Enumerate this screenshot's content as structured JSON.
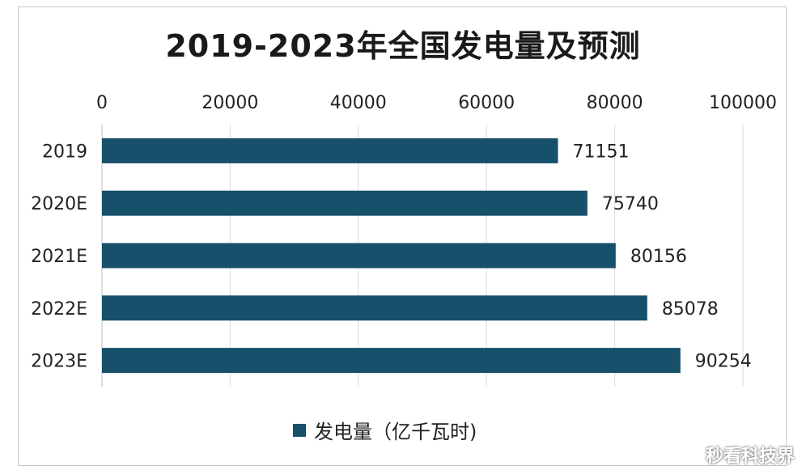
{
  "colors": {
    "bar": "#17506a",
    "grid": "#d9d9d9",
    "axis": "#bfbfbf"
  },
  "chart_data": {
    "type": "bar",
    "orientation": "horizontal",
    "title": "2019-2023年全国发电量及预测",
    "categories": [
      "2019",
      "2020E",
      "2021E",
      "2022E",
      "2023E"
    ],
    "series": [
      {
        "name": "发电量（亿千瓦时)",
        "values": [
          71151,
          75740,
          80156,
          85078,
          90254
        ]
      }
    ],
    "xlim": [
      0,
      100000
    ],
    "xticks": [
      0,
      20000,
      40000,
      60000,
      80000,
      100000
    ],
    "x_axis_position": "top",
    "grid": true,
    "legend": "bottom-center"
  },
  "watermark": "秒看科技界"
}
